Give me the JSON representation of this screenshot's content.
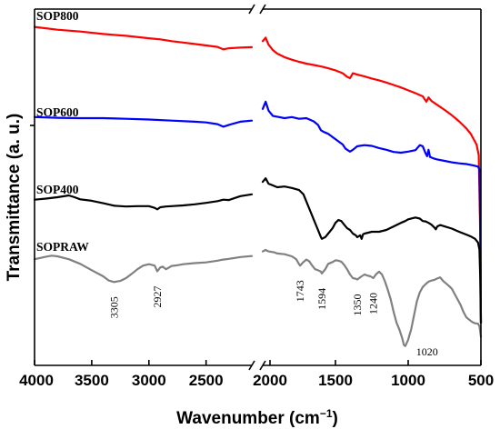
{
  "chart_data": {
    "type": "line",
    "xlabel": "Wavenumber (cm",
    "xlabel_sup": "−1",
    "xlabel_end": ")",
    "ylabel": "Transmittance (a. u.)",
    "xlim": [
      4000,
      500
    ],
    "axis_break": [
      2100,
      2000
    ],
    "x_ticks": [
      4000,
      3500,
      3000,
      2500,
      2000,
      1500,
      1000,
      500
    ],
    "x_tick_labels": [
      "4000",
      "3500",
      "3000",
      "2500",
      "2000",
      "1500",
      "1000",
      "500"
    ],
    "grid": false,
    "series": [
      {
        "name": "SOP800",
        "color": "#ff0000",
        "points": [
          [
            4000,
            5.0
          ],
          [
            3800,
            5.8
          ],
          [
            3600,
            6.3
          ],
          [
            3400,
            7.0
          ],
          [
            3200,
            7.5
          ],
          [
            3000,
            8.2
          ],
          [
            2900,
            8.5
          ],
          [
            2800,
            9.0
          ],
          [
            2700,
            9.4
          ],
          [
            2600,
            9.8
          ],
          [
            2500,
            10.2
          ],
          [
            2400,
            10.6
          ],
          [
            2350,
            11.3
          ],
          [
            2300,
            11.0
          ],
          [
            2200,
            10.8
          ],
          [
            2100,
            10.7
          ],
          [
            2000,
            9.0
          ],
          [
            1980,
            8.0
          ],
          [
            1960,
            10.0
          ],
          [
            1930,
            11.5
          ],
          [
            1900,
            12.5
          ],
          [
            1850,
            13.5
          ],
          [
            1800,
            14.2
          ],
          [
            1750,
            14.8
          ],
          [
            1700,
            15.3
          ],
          [
            1650,
            15.7
          ],
          [
            1600,
            16.1
          ],
          [
            1550,
            16.6
          ],
          [
            1500,
            17.2
          ],
          [
            1450,
            18.0
          ],
          [
            1420,
            19.0
          ],
          [
            1400,
            19.4
          ],
          [
            1380,
            18.0
          ],
          [
            1350,
            18.4
          ],
          [
            1300,
            18.9
          ],
          [
            1250,
            19.5
          ],
          [
            1200,
            20.0
          ],
          [
            1150,
            20.6
          ],
          [
            1100,
            21.3
          ],
          [
            1050,
            22.0
          ],
          [
            1000,
            22.8
          ],
          [
            950,
            23.6
          ],
          [
            900,
            24.5
          ],
          [
            875,
            26.0
          ],
          [
            860,
            24.8
          ],
          [
            840,
            25.8
          ],
          [
            800,
            26.9
          ],
          [
            750,
            28.3
          ],
          [
            700,
            29.8
          ],
          [
            650,
            31.5
          ],
          [
            600,
            33.5
          ],
          [
            570,
            35.0
          ],
          [
            550,
            36.5
          ],
          [
            530,
            38.0
          ],
          [
            515,
            41.0
          ],
          [
            505,
            62.0
          ],
          [
            500,
            88.0
          ]
        ]
      },
      {
        "name": "SOP600",
        "color": "#0000ff",
        "points": [
          [
            4000,
            30.3
          ],
          [
            3800,
            30.5
          ],
          [
            3600,
            30.6
          ],
          [
            3400,
            30.6
          ],
          [
            3200,
            30.8
          ],
          [
            3000,
            31.0
          ],
          [
            2800,
            31.3
          ],
          [
            2600,
            31.6
          ],
          [
            2500,
            31.8
          ],
          [
            2400,
            32.3
          ],
          [
            2350,
            33.0
          ],
          [
            2300,
            32.5
          ],
          [
            2200,
            31.6
          ],
          [
            2100,
            31.3
          ],
          [
            2000,
            28.0
          ],
          [
            1980,
            26.0
          ],
          [
            1960,
            28.5
          ],
          [
            1930,
            30.0
          ],
          [
            1900,
            30.2
          ],
          [
            1850,
            30.6
          ],
          [
            1800,
            30.3
          ],
          [
            1750,
            30.8
          ],
          [
            1700,
            30.6
          ],
          [
            1650,
            31.5
          ],
          [
            1620,
            32.5
          ],
          [
            1600,
            34.0
          ],
          [
            1580,
            34.5
          ],
          [
            1550,
            35.0
          ],
          [
            1500,
            36.5
          ],
          [
            1450,
            38.0
          ],
          [
            1430,
            39.2
          ],
          [
            1400,
            40.0
          ],
          [
            1380,
            39.5
          ],
          [
            1350,
            38.5
          ],
          [
            1300,
            38.2
          ],
          [
            1250,
            38.4
          ],
          [
            1200,
            39.0
          ],
          [
            1150,
            39.5
          ],
          [
            1100,
            40.1
          ],
          [
            1050,
            40.3
          ],
          [
            1000,
            40.0
          ],
          [
            950,
            39.6
          ],
          [
            920,
            38.2
          ],
          [
            900,
            38.5
          ],
          [
            880,
            40.5
          ],
          [
            870,
            41.3
          ],
          [
            860,
            39.5
          ],
          [
            850,
            41.5
          ],
          [
            820,
            42.0
          ],
          [
            800,
            42.2
          ],
          [
            750,
            42.6
          ],
          [
            700,
            43.0
          ],
          [
            650,
            43.3
          ],
          [
            600,
            43.5
          ],
          [
            550,
            43.9
          ],
          [
            520,
            44.2
          ],
          [
            510,
            45.0
          ],
          [
            505,
            60.0
          ],
          [
            500,
            88.0
          ]
        ]
      },
      {
        "name": "SOP400",
        "color": "#000000",
        "points": [
          [
            4000,
            53.5
          ],
          [
            3900,
            53.2
          ],
          [
            3800,
            52.8
          ],
          [
            3700,
            52.3
          ],
          [
            3650,
            52.8
          ],
          [
            3600,
            53.4
          ],
          [
            3500,
            53.8
          ],
          [
            3400,
            54.5
          ],
          [
            3300,
            55.2
          ],
          [
            3200,
            55.4
          ],
          [
            3100,
            55.3
          ],
          [
            3000,
            55.3
          ],
          [
            2950,
            55.8
          ],
          [
            2927,
            56.2
          ],
          [
            2900,
            55.6
          ],
          [
            2850,
            55.4
          ],
          [
            2800,
            55.3
          ],
          [
            2700,
            55.1
          ],
          [
            2600,
            54.8
          ],
          [
            2500,
            54.4
          ],
          [
            2400,
            53.9
          ],
          [
            2350,
            53.5
          ],
          [
            2300,
            53.6
          ],
          [
            2200,
            52.5
          ],
          [
            2100,
            52.0
          ],
          [
            2000,
            48.5
          ],
          [
            1980,
            47.5
          ],
          [
            1960,
            49.0
          ],
          [
            1930,
            49.5
          ],
          [
            1900,
            50.0
          ],
          [
            1850,
            49.8
          ],
          [
            1800,
            50.2
          ],
          [
            1750,
            50.8
          ],
          [
            1720,
            52.0
          ],
          [
            1700,
            54.0
          ],
          [
            1680,
            56.0
          ],
          [
            1650,
            59.0
          ],
          [
            1620,
            62.0
          ],
          [
            1600,
            64.0
          ],
          [
            1594,
            64.5
          ],
          [
            1570,
            64.0
          ],
          [
            1550,
            63.0
          ],
          [
            1520,
            61.5
          ],
          [
            1500,
            60.0
          ],
          [
            1480,
            59.2
          ],
          [
            1460,
            59.5
          ],
          [
            1440,
            60.5
          ],
          [
            1420,
            61.5
          ],
          [
            1400,
            62.0
          ],
          [
            1380,
            63.0
          ],
          [
            1360,
            63.5
          ],
          [
            1350,
            64.0
          ],
          [
            1330,
            63.5
          ],
          [
            1320,
            64.5
          ],
          [
            1310,
            63.2
          ],
          [
            1300,
            63.0
          ],
          [
            1250,
            62.5
          ],
          [
            1200,
            62.5
          ],
          [
            1150,
            62.0
          ],
          [
            1100,
            61.0
          ],
          [
            1050,
            60.0
          ],
          [
            1020,
            59.5
          ],
          [
            1000,
            59.0
          ],
          [
            950,
            58.5
          ],
          [
            920,
            58.8
          ],
          [
            900,
            59.5
          ],
          [
            880,
            59.6
          ],
          [
            860,
            60.0
          ],
          [
            840,
            60.5
          ],
          [
            820,
            61.3
          ],
          [
            810,
            61.8
          ],
          [
            800,
            61.0
          ],
          [
            780,
            60.6
          ],
          [
            750,
            61.0
          ],
          [
            700,
            61.6
          ],
          [
            650,
            62.5
          ],
          [
            600,
            63.3
          ],
          [
            570,
            63.8
          ],
          [
            540,
            64.5
          ],
          [
            520,
            65.5
          ],
          [
            510,
            67.5
          ],
          [
            505,
            75.0
          ],
          [
            500,
            88.0
          ]
        ]
      },
      {
        "name": "SOPRAW",
        "color": "#808080",
        "points": [
          [
            4000,
            70.2
          ],
          [
            3900,
            69.5
          ],
          [
            3850,
            69.2
          ],
          [
            3800,
            69.4
          ],
          [
            3700,
            70.2
          ],
          [
            3600,
            71.5
          ],
          [
            3500,
            73.3
          ],
          [
            3400,
            75.0
          ],
          [
            3350,
            76.2
          ],
          [
            3305,
            76.6
          ],
          [
            3250,
            76.3
          ],
          [
            3200,
            75.5
          ],
          [
            3150,
            74.3
          ],
          [
            3100,
            73.0
          ],
          [
            3050,
            72.0
          ],
          [
            3000,
            71.6
          ],
          [
            2950,
            72.0
          ],
          [
            2927,
            73.6
          ],
          [
            2900,
            72.5
          ],
          [
            2880,
            72.3
          ],
          [
            2850,
            73.0
          ],
          [
            2800,
            72.1
          ],
          [
            2750,
            71.9
          ],
          [
            2700,
            71.6
          ],
          [
            2600,
            71.3
          ],
          [
            2500,
            71.1
          ],
          [
            2400,
            70.6
          ],
          [
            2350,
            70.3
          ],
          [
            2300,
            70.1
          ],
          [
            2200,
            69.6
          ],
          [
            2100,
            69.3
          ],
          [
            2000,
            68.0
          ],
          [
            1980,
            67.6
          ],
          [
            1960,
            68.0
          ],
          [
            1920,
            68.3
          ],
          [
            1900,
            68.6
          ],
          [
            1850,
            68.8
          ],
          [
            1800,
            69.4
          ],
          [
            1770,
            70.2
          ],
          [
            1750,
            71.6
          ],
          [
            1743,
            72.0
          ],
          [
            1720,
            71.0
          ],
          [
            1700,
            70.3
          ],
          [
            1680,
            70.8
          ],
          [
            1660,
            72.0
          ],
          [
            1640,
            73.0
          ],
          [
            1620,
            73.3
          ],
          [
            1600,
            73.7
          ],
          [
            1594,
            74.2
          ],
          [
            1570,
            73.0
          ],
          [
            1550,
            71.5
          ],
          [
            1520,
            71.0
          ],
          [
            1500,
            70.5
          ],
          [
            1480,
            70.6
          ],
          [
            1460,
            70.9
          ],
          [
            1440,
            71.8
          ],
          [
            1420,
            73.0
          ],
          [
            1400,
            74.5
          ],
          [
            1380,
            75.5
          ],
          [
            1360,
            75.7
          ],
          [
            1350,
            75.9
          ],
          [
            1320,
            75.0
          ],
          [
            1300,
            74.5
          ],
          [
            1280,
            74.8
          ],
          [
            1260,
            75.0
          ],
          [
            1240,
            75.5
          ],
          [
            1220,
            74.4
          ],
          [
            1200,
            73.7
          ],
          [
            1180,
            74.5
          ],
          [
            1160,
            76.4
          ],
          [
            1140,
            78.8
          ],
          [
            1120,
            81.5
          ],
          [
            1100,
            85.0
          ],
          [
            1080,
            88.0
          ],
          [
            1060,
            90.0
          ],
          [
            1040,
            92.5
          ],
          [
            1030,
            94.2
          ],
          [
            1020,
            94.6
          ],
          [
            1010,
            93.7
          ],
          [
            1000,
            92.8
          ],
          [
            990,
            91.3
          ],
          [
            980,
            90.0
          ],
          [
            960,
            86.0
          ],
          [
            950,
            84.0
          ],
          [
            940,
            82.0
          ],
          [
            920,
            79.5
          ],
          [
            900,
            78.0
          ],
          [
            880,
            77.2
          ],
          [
            860,
            76.5
          ],
          [
            840,
            76.2
          ],
          [
            820,
            76.0
          ],
          [
            800,
            75.6
          ],
          [
            780,
            75.3
          ],
          [
            760,
            76.3
          ],
          [
            740,
            77.0
          ],
          [
            720,
            77.7
          ],
          [
            700,
            78.5
          ],
          [
            680,
            80.0
          ],
          [
            660,
            81.5
          ],
          [
            640,
            83.0
          ],
          [
            620,
            85.0
          ],
          [
            600,
            86.5
          ],
          [
            580,
            87.2
          ],
          [
            560,
            87.8
          ],
          [
            540,
            88.2
          ],
          [
            520,
            88.3
          ],
          [
            510,
            89.0
          ],
          [
            500,
            92.0
          ]
        ]
      }
    ],
    "annotations": [
      {
        "text": "3305",
        "x": 3305
      },
      {
        "text": "2927",
        "x": 2927
      },
      {
        "text": "1743",
        "x": 1743
      },
      {
        "text": "1594",
        "x": 1594
      },
      {
        "text": "1350",
        "x": 1350
      },
      {
        "text": "1240",
        "x": 1240
      },
      {
        "text": "1020",
        "x": 1020
      }
    ]
  }
}
